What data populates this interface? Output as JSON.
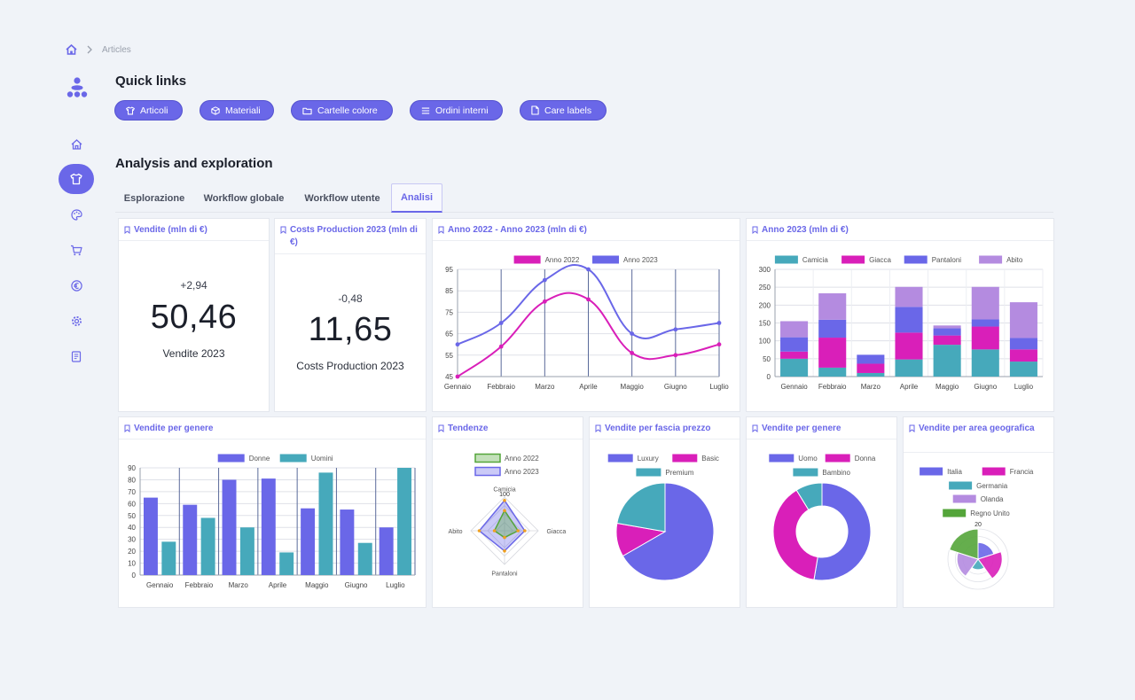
{
  "breadcrumb": {
    "current": "Articles"
  },
  "sidebar": {
    "items": [
      {
        "icon": "home-icon",
        "active": false
      },
      {
        "icon": "shirt-icon",
        "active": true
      },
      {
        "icon": "palette-icon",
        "active": false
      },
      {
        "icon": "cart-icon",
        "active": false
      },
      {
        "icon": "euro-icon",
        "active": false
      },
      {
        "icon": "gear-icon",
        "active": false
      },
      {
        "icon": "book-icon",
        "active": false
      }
    ]
  },
  "quick_links": {
    "title": "Quick links",
    "items": [
      {
        "label": "Articoli",
        "icon": "shirt-icon"
      },
      {
        "label": "Materiali",
        "icon": "box-icon"
      },
      {
        "label": "Cartelle colore",
        "icon": "folder-icon"
      },
      {
        "label": "Ordini interni",
        "icon": "list-icon"
      },
      {
        "label": "Care labels",
        "icon": "file-icon"
      }
    ]
  },
  "analysis": {
    "title": "Analysis and exploration",
    "tabs": [
      "Esplorazione",
      "Workflow globale",
      "Workflow utente",
      "Analisi"
    ],
    "active_tab": "Analisi"
  },
  "colors": {
    "accent": "#6a67e8",
    "magenta": "#d91fb9",
    "teal": "#46a9bb",
    "lilac": "#b48be0",
    "green": "#54a53a"
  },
  "cards": {
    "vendite_kpi": {
      "title": "Vendite (mln di €)",
      "delta": "+2,94",
      "value": "50,46",
      "label": "Vendite 2023"
    },
    "costs_kpi": {
      "title": "Costs Production 2023 (mln di €)",
      "delta": "-0,48",
      "value": "11,65",
      "label": "Costs Production 2023"
    },
    "line_card": {
      "title": "Anno 2022 - Anno 2023 (mln di €)"
    },
    "stack_card": {
      "title": "Anno 2023 (mln di €)"
    },
    "bar_card": {
      "title": "Vendite per genere"
    },
    "radar_card": {
      "title": "Tendenze"
    },
    "pie_card": {
      "title": "Vendite per fascia prezzo"
    },
    "donut_card": {
      "title": "Vendite per genere"
    },
    "polar_card": {
      "title": "Vendite per area geografica"
    }
  },
  "chart_data": [
    {
      "id": "line",
      "type": "line",
      "categories": [
        "Gennaio",
        "Febbraio",
        "Marzo",
        "Aprile",
        "Maggio",
        "Giugno",
        "Luglio"
      ],
      "series": [
        {
          "name": "Anno 2022",
          "color": "#d91fb9",
          "values": [
            45,
            59,
            80,
            81,
            56,
            55,
            60
          ]
        },
        {
          "name": "Anno 2023",
          "color": "#6a67e8",
          "values": [
            60,
            70,
            90,
            95,
            65,
            67,
            70
          ]
        }
      ],
      "ylim": [
        45,
        95
      ],
      "yticks": [
        45,
        55,
        65,
        75,
        85,
        95
      ],
      "grid": true,
      "legend": "top"
    },
    {
      "id": "stack",
      "type": "bar",
      "stacked": true,
      "categories": [
        "Gennaio",
        "Febbraio",
        "Marzo",
        "Aprile",
        "Maggio",
        "Giugno",
        "Luglio"
      ],
      "series": [
        {
          "name": "Camicia",
          "color": "#46a9bb",
          "values": [
            50,
            25,
            10,
            48,
            89,
            76,
            42
          ]
        },
        {
          "name": "Giacca",
          "color": "#d91fb9",
          "values": [
            20,
            84,
            26,
            75,
            26,
            64,
            34
          ]
        },
        {
          "name": "Pantaloni",
          "color": "#6a67e8",
          "values": [
            40,
            50,
            25,
            72,
            20,
            20,
            32
          ]
        },
        {
          "name": "Abito",
          "color": "#b48be0",
          "values": [
            45,
            74,
            0,
            56,
            8,
            91,
            100
          ]
        }
      ],
      "ylim": [
        0,
        300
      ],
      "yticks": [
        0,
        50,
        100,
        150,
        200,
        250,
        300
      ],
      "grid": true,
      "legend": "top"
    },
    {
      "id": "bar",
      "type": "bar",
      "categories": [
        "Gennaio",
        "Febbraio",
        "Marzo",
        "Aprile",
        "Maggio",
        "Giugno",
        "Luglio"
      ],
      "series": [
        {
          "name": "Donne",
          "color": "#6a67e8",
          "values": [
            65,
            59,
            80,
            81,
            56,
            55,
            40
          ]
        },
        {
          "name": "Uomini",
          "color": "#46a9bb",
          "values": [
            28,
            48,
            40,
            19,
            86,
            27,
            90
          ]
        }
      ],
      "ylim": [
        0,
        90
      ],
      "yticks": [
        0,
        10,
        20,
        30,
        40,
        50,
        60,
        70,
        80,
        90
      ],
      "grid": true,
      "legend": "top"
    },
    {
      "id": "radar",
      "type": "radar",
      "categories": [
        "Camicia",
        "Giacca",
        "Pantaloni",
        "Abito"
      ],
      "series": [
        {
          "name": "Anno 2022",
          "color": "#54a53a",
          "values": [
            60,
            40,
            20,
            30
          ]
        },
        {
          "name": "Anno 2023",
          "color": "#6a67e8",
          "values": [
            90,
            60,
            60,
            75
          ]
        }
      ],
      "ylim": [
        0,
        100
      ],
      "scale_label": "100",
      "legend": "top"
    },
    {
      "id": "pie",
      "type": "pie",
      "categories": [
        "Luxury",
        "Basic",
        "Premium"
      ],
      "values": [
        300,
        50,
        100
      ],
      "colors": [
        "#6a67e8",
        "#d91fb9",
        "#46a9bb"
      ],
      "legend": "top"
    },
    {
      "id": "donut",
      "type": "pie",
      "donut": true,
      "categories": [
        "Uomo",
        "Donna",
        "Bambino"
      ],
      "values": [
        300,
        220,
        50
      ],
      "colors": [
        "#6a67e8",
        "#d91fb9",
        "#46a9bb"
      ],
      "legend": "top"
    },
    {
      "id": "polar",
      "type": "polar",
      "categories": [
        "Italia",
        "Francia",
        "Germania",
        "Olanda",
        "Regno Unito"
      ],
      "values": [
        11,
        16,
        7,
        14,
        20
      ],
      "colors": [
        "#6a67e8",
        "#d91fb9",
        "#46a9bb",
        "#b48be0",
        "#54a53a"
      ],
      "ylim": [
        0,
        20
      ],
      "scale_label": "20",
      "legend": "top"
    }
  ]
}
